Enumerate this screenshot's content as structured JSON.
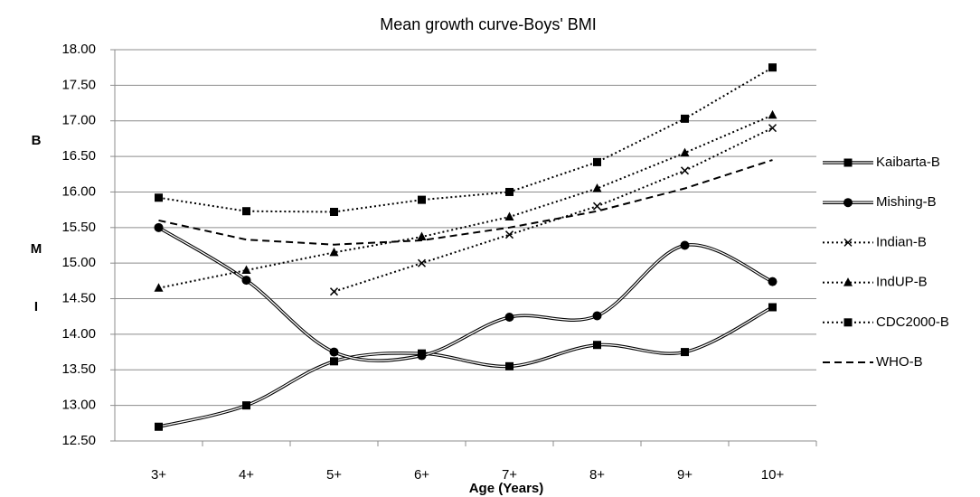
{
  "chart_data": {
    "type": "line",
    "title": "Mean growth curve-Boys' BMI",
    "xlabel": "Age (Years)",
    "ylabel": [
      "B",
      "M",
      "I"
    ],
    "categories": [
      "3+",
      "4+",
      "5+",
      "6+",
      "7+",
      "8+",
      "9+",
      "10+"
    ],
    "ylim": [
      12.5,
      18
    ],
    "yticks": [
      {
        "value": 12.5,
        "label": "12.50"
      },
      {
        "value": 13,
        "label": "13.00"
      },
      {
        "value": 13.5,
        "label": "13.50"
      },
      {
        "value": 14,
        "label": "14.00"
      },
      {
        "value": 14.5,
        "label": "14.50"
      },
      {
        "value": 15,
        "label": "15.00"
      },
      {
        "value": 15.5,
        "label": "15.50"
      },
      {
        "value": 16,
        "label": "16.00"
      },
      {
        "value": 16.5,
        "label": "16.50"
      },
      {
        "value": 17,
        "label": "17.00"
      },
      {
        "value": 17.5,
        "label": "17.50"
      },
      {
        "value": 18,
        "label": "18.00"
      }
    ],
    "grid": true,
    "legend": "right",
    "series": [
      {
        "name": "Kaibarta-B",
        "color": "#000000",
        "line": "double",
        "marker": "square",
        "smooth": true,
        "values": [
          12.7,
          13.0,
          13.62,
          13.73,
          13.55,
          13.85,
          13.75,
          14.38
        ]
      },
      {
        "name": "Mishing-B",
        "color": "#000000",
        "line": "double",
        "marker": "circle",
        "smooth": true,
        "values": [
          15.5,
          14.76,
          13.75,
          13.7,
          14.24,
          14.26,
          15.25,
          14.74
        ]
      },
      {
        "name": "Indian-B",
        "color": "#000000",
        "line": "dotted",
        "marker": "x",
        "smooth": false,
        "values": [
          null,
          null,
          14.6,
          15.0,
          15.4,
          15.8,
          16.3,
          16.9
        ]
      },
      {
        "name": "IndUP-B",
        "color": "#000000",
        "line": "dotted",
        "marker": "triangle",
        "smooth": false,
        "values": [
          14.65,
          14.9,
          15.15,
          15.37,
          15.65,
          16.05,
          16.55,
          17.08
        ]
      },
      {
        "name": "CDC2000-B",
        "color": "#000000",
        "line": "dotted",
        "marker": "square",
        "smooth": false,
        "values": [
          15.92,
          15.73,
          15.72,
          15.89,
          16.0,
          16.42,
          17.03,
          17.75
        ]
      },
      {
        "name": "WHO-B",
        "color": "#000000",
        "line": "dashed",
        "marker": "none",
        "smooth": false,
        "values": [
          15.6,
          15.33,
          15.26,
          15.32,
          15.5,
          15.73,
          16.05,
          16.45
        ]
      }
    ]
  }
}
